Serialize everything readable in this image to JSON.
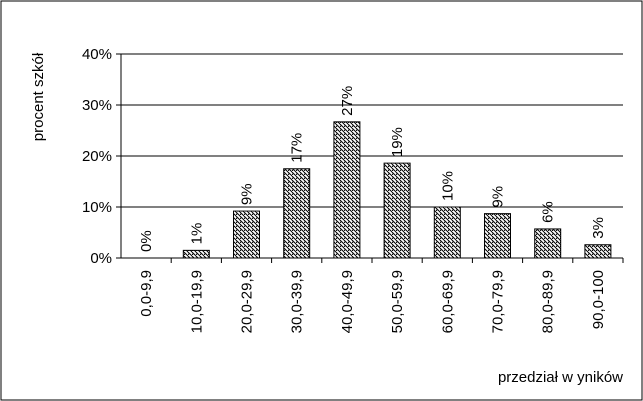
{
  "colors": {
    "bar_fill": "#ffffff",
    "bar_hatch": "#000000",
    "bar_stroke": "#000000",
    "gridline": "#000000",
    "frame": "#000000"
  },
  "chart_data": {
    "type": "bar",
    "categories": [
      "0,0-9,9",
      "10,0-19,9",
      "20,0-29,9",
      "30,0-39,9",
      "40,0-49,9",
      "50,0-59,9",
      "60,0-69,9",
      "70,0-79,9",
      "80,0-89,9",
      "90,0-100"
    ],
    "values": [
      0,
      1.5,
      9.2,
      17.5,
      26.7,
      18.6,
      10.0,
      8.7,
      5.7,
      2.6
    ],
    "data_labels": [
      "0%",
      "1%",
      "9%",
      "17%",
      "27%",
      "19%",
      "10%",
      "9%",
      "6%",
      "3%"
    ],
    "ylabel": "procent szkół",
    "xlabel": "przedział w yników",
    "ylim": [
      0,
      40
    ],
    "yticks": [
      0,
      10,
      20,
      30,
      40
    ],
    "ytick_labels": [
      "0%",
      "10%",
      "20%",
      "30%",
      "40%"
    ],
    "grid": true,
    "legend": "none"
  }
}
